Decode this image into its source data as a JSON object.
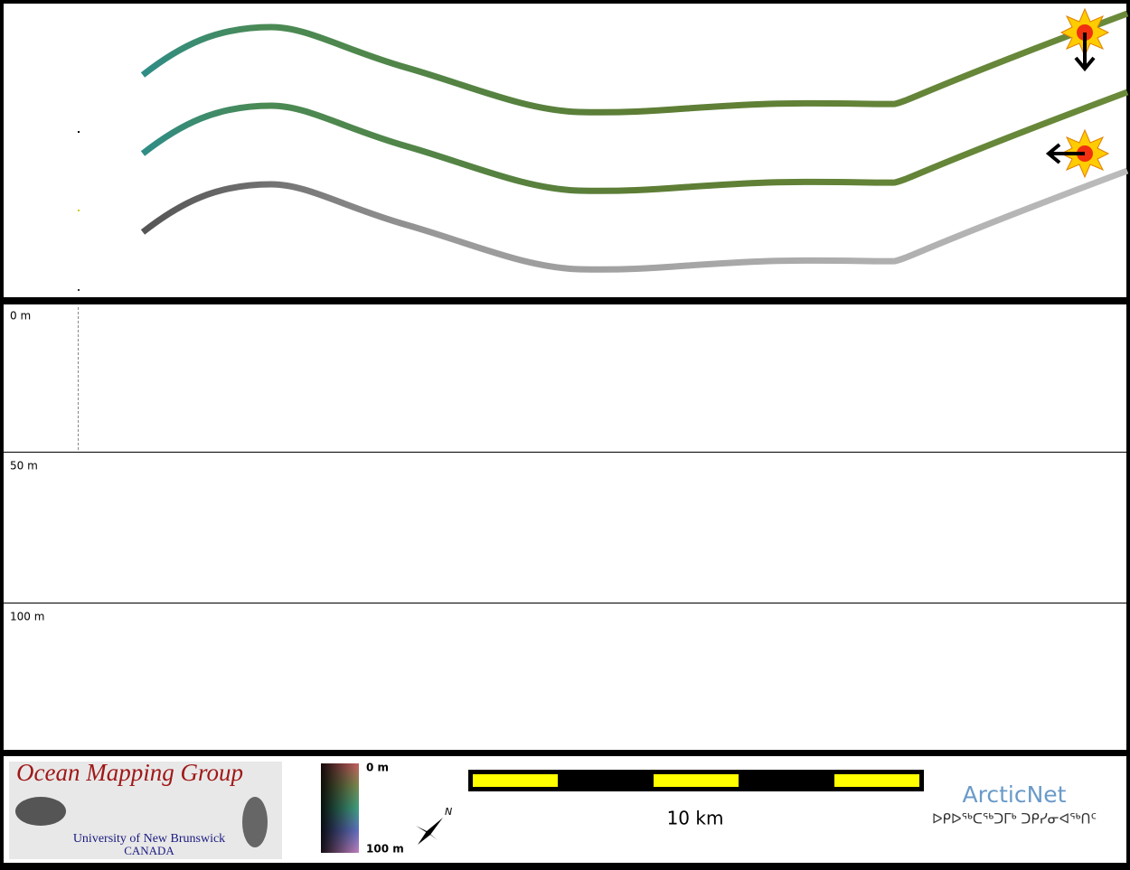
{
  "depth_panel": {
    "labels": [
      "0 m",
      "50 m",
      "100 m"
    ]
  },
  "footer": {
    "logo": {
      "title": "Ocean Mapping Group",
      "university": "University of New Brunswick",
      "country": "CANADA"
    },
    "color_bar": {
      "top_label": "0 m",
      "bottom_label": "100 m"
    },
    "compass": {
      "label": "N"
    },
    "scale_bar": {
      "label": "10 km"
    },
    "partner": {
      "name": "ArcticNet",
      "subtitle": "ᐅᑭᐅᖅᑕᖅᑐᒥᒃ ᑐᑭᓯᓂᐊᖅᑎᑦ"
    }
  }
}
